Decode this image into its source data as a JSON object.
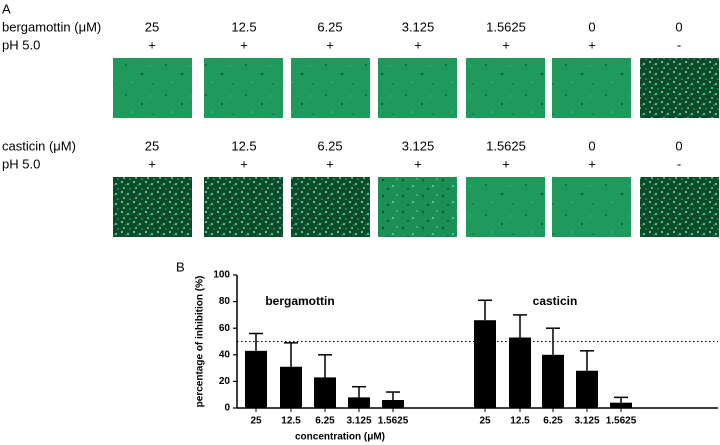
{
  "panel_a": {
    "label": "A",
    "rows": [
      {
        "compound": "bergamottin (μM)",
        "concentrations": [
          "25",
          "12.5",
          "6.25",
          "3.125",
          "1.5625",
          "0",
          "0"
        ],
        "ph_label": "pH 5.0",
        "ph_signs": [
          "+",
          "+",
          "+",
          "+",
          "+",
          "+",
          "-"
        ]
      },
      {
        "compound": "casticin (μM)",
        "concentrations": [
          "25",
          "12.5",
          "6.25",
          "3.125",
          "1.5625",
          "0",
          "0"
        ],
        "ph_label": "pH 5.0",
        "ph_signs": [
          "+",
          "+",
          "+",
          "+",
          "+",
          "+",
          "-"
        ]
      }
    ]
  },
  "chart_data": {
    "type": "bar",
    "panel_label": "B",
    "ylabel": "percentage of inhibition (%)",
    "xlabel": "concentration (μM)",
    "ylim": [
      0,
      100
    ],
    "yticks": [
      0,
      20,
      40,
      60,
      80,
      100
    ],
    "reference_line": 50,
    "color": "#000000",
    "groups": [
      {
        "name": "bergamottin",
        "categories": [
          "25",
          "12.5",
          "6.25",
          "3.125",
          "1.5625"
        ],
        "values": [
          43,
          31,
          23,
          8,
          6
        ],
        "errors": [
          13,
          18,
          17,
          8,
          6
        ]
      },
      {
        "name": "casticin",
        "categories": [
          "25",
          "12.5",
          "6.25",
          "3.125",
          "1.5625"
        ],
        "values": [
          66,
          53,
          40,
          28,
          4
        ],
        "errors": [
          15,
          17,
          20,
          15,
          4
        ]
      }
    ]
  }
}
